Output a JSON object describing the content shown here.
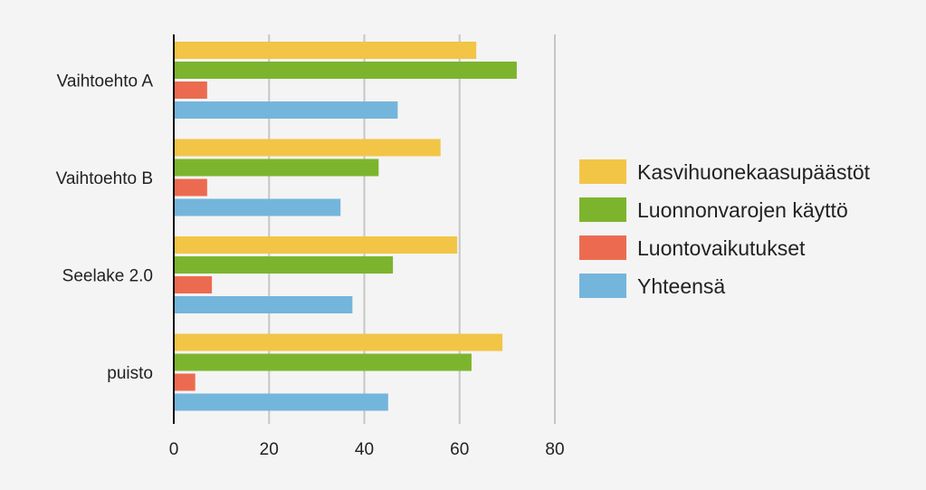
{
  "chart_data": {
    "type": "bar",
    "orientation": "horizontal",
    "title": "",
    "xlabel": "",
    "ylabel": "",
    "categories": [
      "Vaihtoehto A",
      "Vaihtoehto B",
      "Seelake 2.0",
      "puisto"
    ],
    "series": [
      {
        "name": "Kasvihuonekaasupäästöt",
        "color": "#f2c546",
        "values": [
          63.5,
          56,
          59.5,
          69
        ]
      },
      {
        "name": "Luonnonvarojen käyttö",
        "color": "#7cb52d",
        "values": [
          72,
          43,
          46,
          62.5
        ]
      },
      {
        "name": "Luontovaikutukset",
        "color": "#ec6b50",
        "values": [
          7,
          7,
          8,
          4.5
        ]
      },
      {
        "name": "Yhteensä",
        "color": "#74b5dc",
        "values": [
          47,
          35,
          37.5,
          45
        ]
      }
    ],
    "xlim": [
      0,
      80
    ],
    "xticks": [
      "0",
      "20",
      "40",
      "60",
      "80"
    ],
    "grid": true,
    "legend": "right"
  }
}
